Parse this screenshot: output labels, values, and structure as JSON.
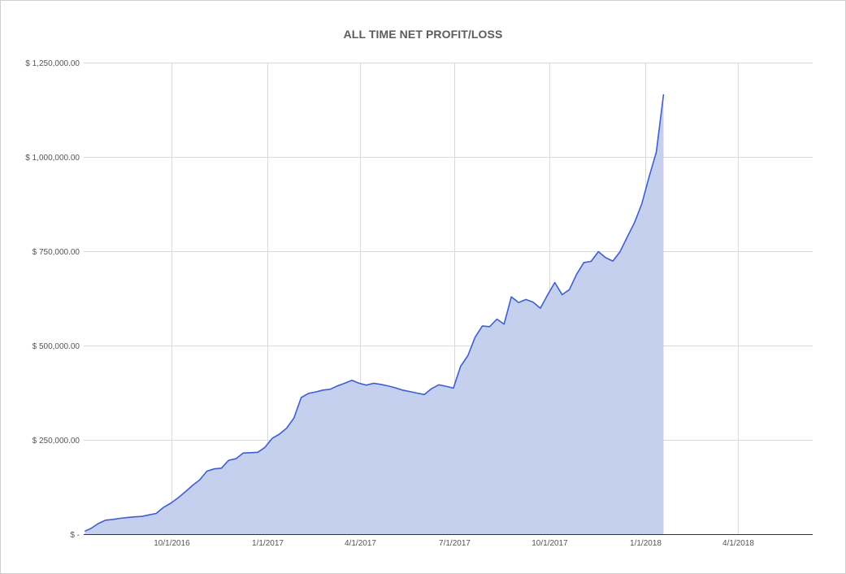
{
  "chart_data": {
    "type": "area",
    "title": "ALL TIME NET PROFIT/LOSS",
    "xlabel": "",
    "ylabel": "",
    "ylim": [
      0,
      1250000
    ],
    "xlim": [
      "2016-07-08",
      "2018-06-12"
    ],
    "grid": true,
    "legend": "none",
    "y_ticks": [
      {
        "value": 0,
        "label": "$ -"
      },
      {
        "value": 250000,
        "label": "$ 250,000.00"
      },
      {
        "value": 500000,
        "label": "$ 500,000.00"
      },
      {
        "value": 750000,
        "label": "$ 750,000.00"
      },
      {
        "value": 1000000,
        "label": "$ 1,000,000.00"
      },
      {
        "value": 1250000,
        "label": "$ 1,250,000.00"
      }
    ],
    "x_ticks": [
      {
        "value": "2016-10-01",
        "label": "10/1/2016"
      },
      {
        "value": "2017-01-01",
        "label": "1/1/2017"
      },
      {
        "value": "2017-04-01",
        "label": "4/1/2017"
      },
      {
        "value": "2017-07-01",
        "label": "7/1/2017"
      },
      {
        "value": "2017-10-01",
        "label": "10/1/2017"
      },
      {
        "value": "2018-01-01",
        "label": "1/1/2018"
      },
      {
        "value": "2018-04-01",
        "label": "4/1/2018"
      }
    ],
    "colors": {
      "line": "#3f5fcf",
      "fill": "#c5d0ee",
      "grid": "#d9d9d9",
      "axis": "#333333"
    },
    "series": [
      {
        "x": [
          "2016-07-09",
          "2016-07-15",
          "2016-07-22",
          "2016-07-29",
          "2016-08-05",
          "2016-08-12",
          "2016-08-19",
          "2016-08-26",
          "2016-09-02",
          "2016-09-09",
          "2016-09-16",
          "2016-09-23",
          "2016-09-30",
          "2016-10-07",
          "2016-10-14",
          "2016-10-21",
          "2016-10-28",
          "2016-11-04",
          "2016-11-11",
          "2016-11-18",
          "2016-11-25",
          "2016-12-02",
          "2016-12-09",
          "2016-12-16",
          "2016-12-23",
          "2016-12-30",
          "2017-01-06",
          "2017-01-13",
          "2017-01-20",
          "2017-01-27",
          "2017-02-03",
          "2017-02-10",
          "2017-02-17",
          "2017-02-24",
          "2017-03-03",
          "2017-03-10",
          "2017-03-17",
          "2017-03-24",
          "2017-03-31",
          "2017-04-07",
          "2017-04-14",
          "2017-04-21",
          "2017-04-28",
          "2017-05-05",
          "2017-05-12",
          "2017-05-19",
          "2017-05-26",
          "2017-06-02",
          "2017-06-09",
          "2017-06-16",
          "2017-06-23",
          "2017-06-30",
          "2017-07-07",
          "2017-07-14",
          "2017-07-21",
          "2017-07-28",
          "2017-08-04",
          "2017-08-11",
          "2017-08-18",
          "2017-08-25",
          "2017-09-01",
          "2017-09-08",
          "2017-09-15",
          "2017-09-22",
          "2017-09-29",
          "2017-10-06",
          "2017-10-13",
          "2017-10-20",
          "2017-10-27",
          "2017-11-03",
          "2017-11-10",
          "2017-11-17",
          "2017-11-24",
          "2017-12-01",
          "2017-12-08",
          "2017-12-15",
          "2017-12-22",
          "2017-12-29",
          "2018-01-05",
          "2018-01-12",
          "2018-01-19",
          "2018-01-26",
          "2018-02-02"
        ],
        "values": [
          8000,
          15000,
          28000,
          37000,
          39000,
          42000,
          44000,
          46000,
          47000,
          51000,
          55000,
          71000,
          82000,
          96000,
          112000,
          129000,
          144000,
          167000,
          173000,
          175000,
          196000,
          200000,
          215000,
          216000,
          217000,
          230000,
          254000,
          265000,
          281000,
          308000,
          362000,
          373000,
          377000,
          382000,
          384000,
          393000,
          400000,
          408000,
          400000,
          395000,
          400000,
          397000,
          393000,
          388000,
          382000,
          378000,
          374000,
          370000,
          386000,
          396000,
          392000,
          387000,
          445000,
          473000,
          522000,
          552000,
          550000,
          570000,
          557000,
          629000,
          614000,
          622000,
          615000,
          599000,
          634000,
          667000,
          635000,
          648000,
          689000,
          720000,
          723000,
          749000,
          733000,
          724000,
          749000,
          788000,
          826000,
          876000,
          947000,
          1013000,
          1166000,
          1166000,
          1166000
        ]
      }
    ]
  }
}
